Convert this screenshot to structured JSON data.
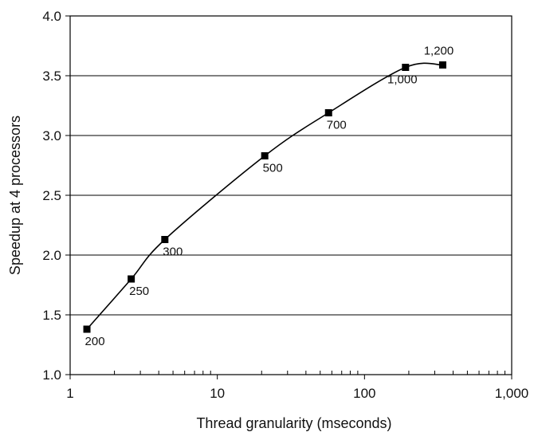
{
  "chart_data": {
    "type": "line",
    "title": "",
    "xlabel": "Thread granularity (mseconds)",
    "ylabel": "Speedup at 4 processors",
    "xscale": "log",
    "xlim": [
      1,
      1000
    ],
    "ylim": [
      1.0,
      4.0
    ],
    "x_ticks": [
      1,
      10,
      100,
      1000
    ],
    "x_tick_labels": [
      "1",
      "10",
      "100",
      "1,000"
    ],
    "y_ticks": [
      1.0,
      1.5,
      2.0,
      2.5,
      3.0,
      3.5,
      4.0
    ],
    "y_tick_labels": [
      "1.0",
      "1.5",
      "2.0",
      "2.5",
      "3.0",
      "3.5",
      "4.0"
    ],
    "grid": "horizontal",
    "legend": "none",
    "series": [
      {
        "x": [
          1.3,
          2.6,
          4.4,
          21,
          57,
          190,
          340
        ],
        "y": [
          1.38,
          1.8,
          2.13,
          2.83,
          3.19,
          3.57,
          3.59
        ],
        "point_labels": [
          "200",
          "250",
          "300",
          "500",
          "700",
          "1,000",
          "1,200"
        ],
        "color": "#000000",
        "marker": "square"
      }
    ]
  }
}
